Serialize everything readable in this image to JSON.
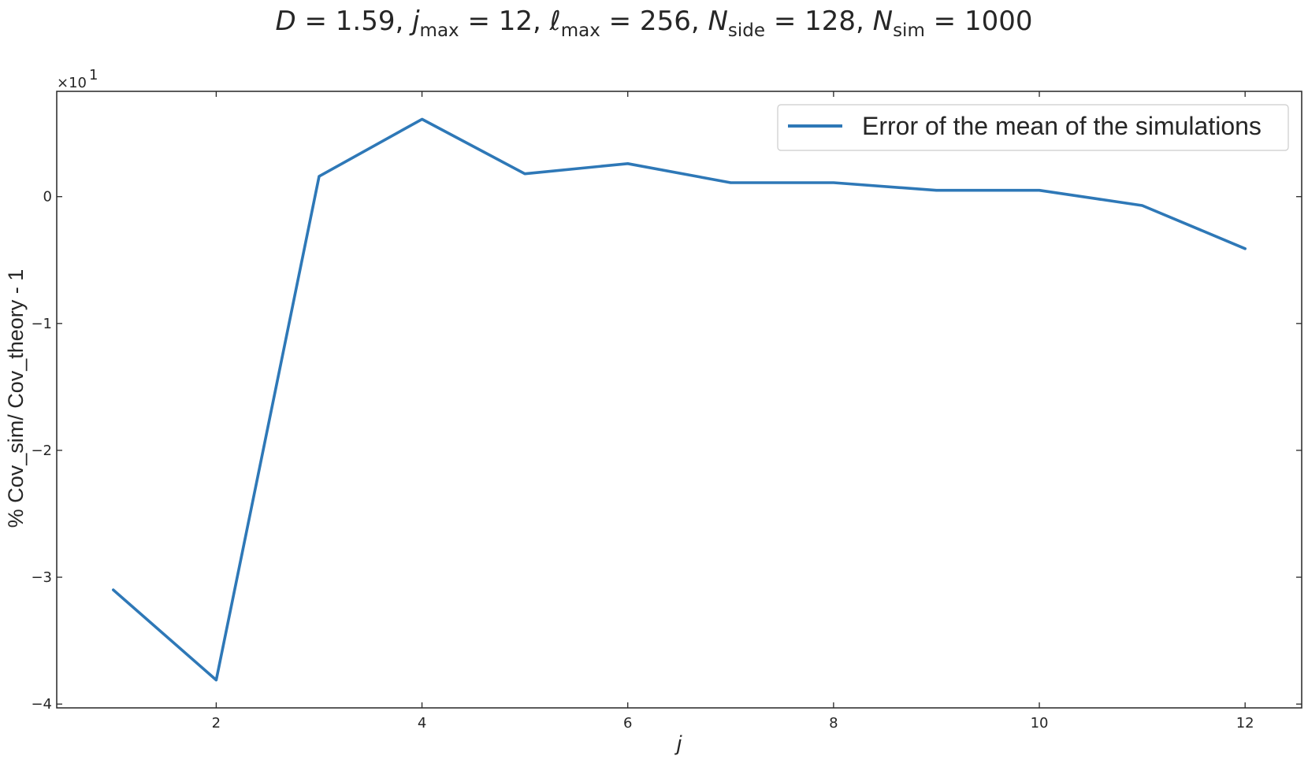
{
  "chart_data": {
    "type": "line",
    "title": {
      "parts": [
        {
          "text": "D",
          "style": "italic"
        },
        {
          "text": " = 1.59,  "
        },
        {
          "text": "j",
          "style": "italic"
        },
        {
          "text": "max",
          "style": "sub"
        },
        {
          "text": " = 12,  "
        },
        {
          "text": "ℓ",
          "style": "italic"
        },
        {
          "text": "max",
          "style": "sub"
        },
        {
          "text": " = 256,  "
        },
        {
          "text": "N",
          "style": "italic"
        },
        {
          "text": "side",
          "style": "sub"
        },
        {
          "text": " = 128, "
        },
        {
          "text": "N",
          "style": "italic"
        },
        {
          "text": "sim",
          "style": "sub"
        },
        {
          "text": " = 1000"
        }
      ]
    },
    "xlabel": "j",
    "ylabel": "% Cov_sim/ Cov_theory - 1",
    "y_offset_label": {
      "base": "×10",
      "exponent": "1"
    },
    "xlim": [
      0.45,
      12.55
    ],
    "ylim": [
      -4.03,
      0.83
    ],
    "x_ticks": [
      2,
      4,
      6,
      8,
      10,
      12
    ],
    "y_ticks": [
      0,
      -1,
      -2,
      -3,
      -4
    ],
    "x_tick_labels": [
      "2",
      "4",
      "6",
      "8",
      "10",
      "12"
    ],
    "y_tick_labels": [
      "0",
      "−1",
      "−2",
      "−3",
      "−4"
    ],
    "grid": false,
    "legend_position": "top-right",
    "series": [
      {
        "name": "Error of the mean of the simulations",
        "color": "#2e78b7",
        "x": [
          1,
          2,
          3,
          4,
          5,
          6,
          7,
          8,
          9,
          10,
          11,
          12
        ],
        "y": [
          -3.1,
          -3.81,
          0.16,
          0.61,
          0.18,
          0.26,
          0.11,
          0.11,
          0.05,
          0.05,
          -0.07,
          -0.41
        ]
      }
    ]
  }
}
